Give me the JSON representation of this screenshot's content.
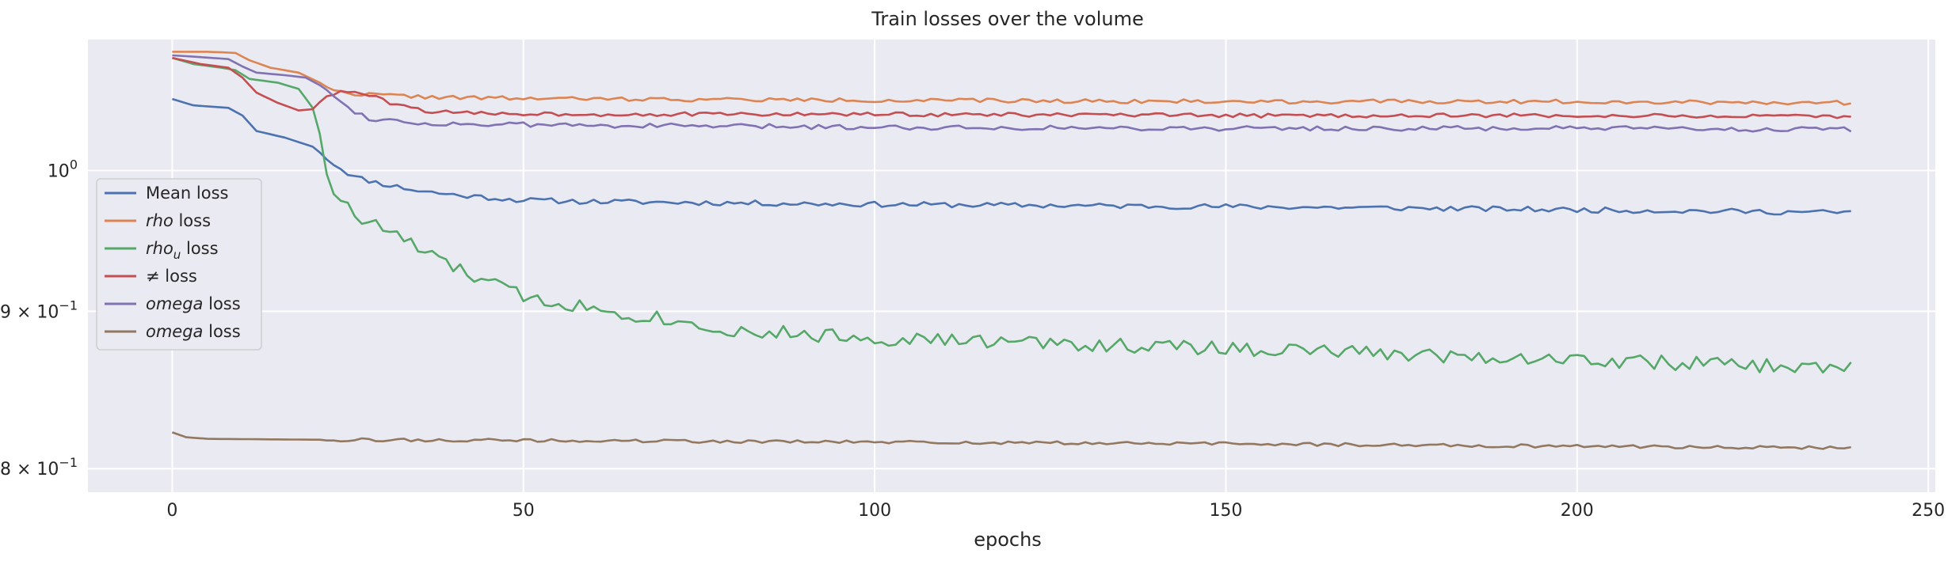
{
  "chart_data": {
    "type": "line",
    "title": "Train losses over the volume",
    "xlabel": "epochs",
    "ylabel": "",
    "xlim": [
      -12,
      251
    ],
    "ylim": [
      0.786,
      1.103
    ],
    "yscale": "log",
    "grid": true,
    "legend_position": "center-left",
    "xticks": [
      0,
      50,
      100,
      150,
      200,
      250
    ],
    "xtick_labels": [
      "0",
      "50",
      "100",
      "150",
      "200",
      "250"
    ],
    "yticks": [
      {
        "value": 1.0,
        "base": "10",
        "exp": "0",
        "prefix": ""
      },
      {
        "value": 0.9,
        "base": "10",
        "exp": "−1",
        "prefix": "9 × "
      },
      {
        "value": 0.8,
        "base": "10",
        "exp": "−1",
        "prefix": "8 × "
      }
    ],
    "series": [
      {
        "name": "Mean loss",
        "legend_plain": "Mean loss",
        "legend_italic": "",
        "legend_sub": "",
        "legend_tail": "",
        "color": "#4c72b0",
        "anchors": [
          [
            0,
            1.055
          ],
          [
            3,
            1.05
          ],
          [
            8,
            1.048
          ],
          [
            10,
            1.042
          ],
          [
            12,
            1.03
          ],
          [
            16,
            1.025
          ],
          [
            20,
            1.018
          ],
          [
            23,
            1.005
          ],
          [
            26,
            0.995
          ],
          [
            30,
            0.99
          ],
          [
            35,
            0.985
          ],
          [
            40,
            0.982
          ],
          [
            50,
            0.978
          ],
          [
            60,
            0.977
          ],
          [
            80,
            0.976
          ],
          [
            100,
            0.975
          ],
          [
            130,
            0.974
          ],
          [
            160,
            0.973
          ],
          [
            200,
            0.971
          ],
          [
            239,
            0.969
          ]
        ],
        "noise": 0.002,
        "seed": 11
      },
      {
        "name": "rho loss",
        "legend_plain": "",
        "legend_italic": "rho",
        "legend_sub": "",
        "legend_tail": " loss",
        "color": "#dd8452",
        "anchors": [
          [
            0,
            1.093
          ],
          [
            5,
            1.093
          ],
          [
            9,
            1.092
          ],
          [
            11,
            1.086
          ],
          [
            14,
            1.08
          ],
          [
            18,
            1.076
          ],
          [
            21,
            1.068
          ],
          [
            24,
            1.06
          ],
          [
            30,
            1.058
          ],
          [
            40,
            1.056
          ],
          [
            60,
            1.055
          ],
          [
            100,
            1.054
          ],
          [
            150,
            1.053
          ],
          [
            200,
            1.053
          ],
          [
            239,
            1.052
          ]
        ],
        "noise": 0.0015,
        "seed": 22
      },
      {
        "name": "rho_u loss",
        "legend_plain": "",
        "legend_italic": "rho",
        "legend_sub": "u",
        "legend_tail": " loss",
        "color": "#55a868",
        "anchors": [
          [
            0,
            1.088
          ],
          [
            3,
            1.083
          ],
          [
            7,
            1.08
          ],
          [
            9,
            1.078
          ],
          [
            11,
            1.071
          ],
          [
            15,
            1.068
          ],
          [
            18,
            1.063
          ],
          [
            20,
            1.048
          ],
          [
            21,
            1.028
          ],
          [
            22,
            1.0
          ],
          [
            23,
            0.985
          ],
          [
            25,
            0.972
          ],
          [
            27,
            0.963
          ],
          [
            30,
            0.958
          ],
          [
            33,
            0.95
          ],
          [
            36,
            0.94
          ],
          [
            40,
            0.93
          ],
          [
            45,
            0.92
          ],
          [
            50,
            0.91
          ],
          [
            60,
            0.902
          ],
          [
            70,
            0.895
          ],
          [
            80,
            0.887
          ],
          [
            100,
            0.882
          ],
          [
            130,
            0.878
          ],
          [
            160,
            0.874
          ],
          [
            200,
            0.868
          ],
          [
            239,
            0.862
          ]
        ],
        "noise": 0.0055,
        "seed": 33
      },
      {
        "name": "ne loss",
        "legend_plain": "≠  loss",
        "legend_italic": "",
        "legend_sub": "",
        "legend_tail": "",
        "color": "#c44e52",
        "anchors": [
          [
            0,
            1.088
          ],
          [
            4,
            1.083
          ],
          [
            8,
            1.08
          ],
          [
            10,
            1.072
          ],
          [
            12,
            1.06
          ],
          [
            15,
            1.052
          ],
          [
            18,
            1.046
          ],
          [
            20,
            1.047
          ],
          [
            22,
            1.058
          ],
          [
            25,
            1.061
          ],
          [
            28,
            1.058
          ],
          [
            32,
            1.05
          ],
          [
            36,
            1.046
          ],
          [
            40,
            1.044
          ],
          [
            60,
            1.043
          ],
          [
            100,
            1.043
          ],
          [
            150,
            1.042
          ],
          [
            200,
            1.042
          ],
          [
            239,
            1.041
          ]
        ],
        "noise": 0.0015,
        "seed": 44
      },
      {
        "name": "omega loss",
        "legend_plain": "",
        "legend_italic": "omega",
        "legend_sub": "",
        "legend_tail": " loss",
        "color": "#8172b3",
        "anchors": [
          [
            0,
            1.09
          ],
          [
            3,
            1.089
          ],
          [
            8,
            1.087
          ],
          [
            10,
            1.081
          ],
          [
            12,
            1.076
          ],
          [
            16,
            1.074
          ],
          [
            19,
            1.072
          ],
          [
            22,
            1.063
          ],
          [
            25,
            1.048
          ],
          [
            28,
            1.04
          ],
          [
            35,
            1.036
          ],
          [
            45,
            1.035
          ],
          [
            70,
            1.034
          ],
          [
            100,
            1.033
          ],
          [
            150,
            1.032
          ],
          [
            200,
            1.032
          ],
          [
            239,
            1.031
          ]
        ],
        "noise": 0.0018,
        "seed": 55
      },
      {
        "name": "omega loss (brown)",
        "legend_plain": "",
        "legend_italic": "omega",
        "legend_sub": "",
        "legend_tail": " loss",
        "color": "#937860",
        "anchors": [
          [
            0,
            0.822
          ],
          [
            2,
            0.819
          ],
          [
            5,
            0.818
          ],
          [
            20,
            0.8175
          ],
          [
            50,
            0.817
          ],
          [
            100,
            0.816
          ],
          [
            150,
            0.815
          ],
          [
            200,
            0.8135
          ],
          [
            239,
            0.8125
          ]
        ],
        "noise": 0.0012,
        "seed": 66
      }
    ]
  }
}
